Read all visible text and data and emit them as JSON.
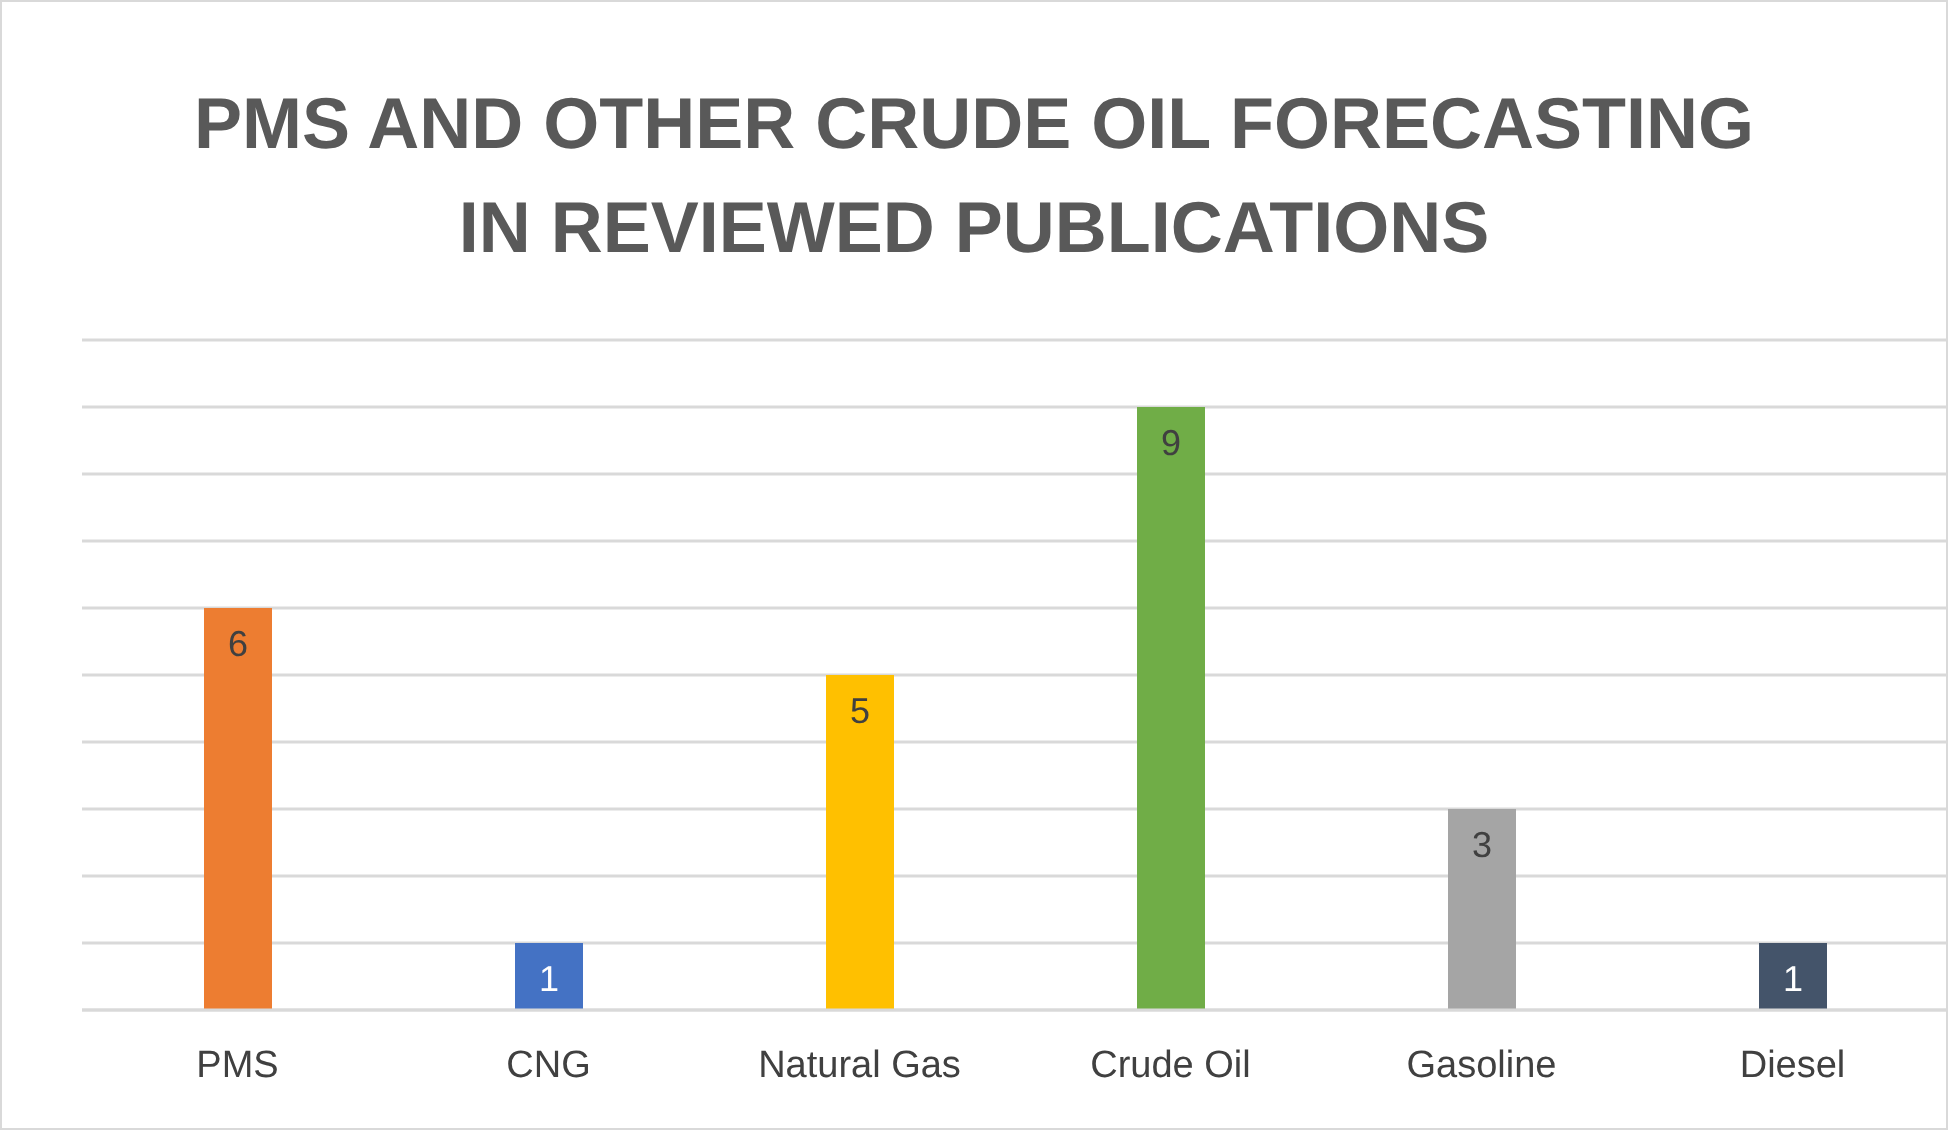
{
  "chart_data": {
    "type": "bar",
    "title": "PMS AND OTHER CRUDE OIL FORECASTING IN REVIEWED PUBLICATIONS",
    "categories": [
      "PMS",
      "CNG",
      "Natural Gas",
      "Crude Oil",
      "Gasoline",
      "Diesel"
    ],
    "values": [
      6,
      1,
      5,
      9,
      3,
      1
    ],
    "colors": [
      "#ed7d31",
      "#4472c4",
      "#ffc000",
      "#70ad47",
      "#a5a5a5",
      "#44546a"
    ],
    "ylim": [
      0,
      10
    ],
    "grid": "y",
    "tick_labels": "x",
    "data_labels": true,
    "legend": false
  }
}
